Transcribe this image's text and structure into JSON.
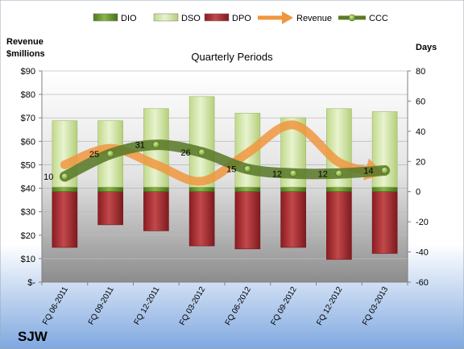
{
  "chart_data": {
    "type": "bar",
    "title": "Quarterly Periods",
    "company": "SJW",
    "y_left_label": [
      "Revenue",
      "$millions"
    ],
    "y_right_label": "Days",
    "categories": [
      "FQ 06-2011",
      "FQ 09-2011",
      "FQ 12-2011",
      "FQ 03-2012",
      "FQ 06-2012",
      "FQ 09-2012",
      "FQ 12-2012",
      "FQ 03-2013"
    ],
    "left_axis": {
      "min": 0,
      "max": 90,
      "step": 10,
      "tick_labels": [
        "$-",
        "$10",
        "$20",
        "$30",
        "$40",
        "$50",
        "$60",
        "$70",
        "$80",
        "$90"
      ]
    },
    "right_axis": {
      "min": -60,
      "max": 80,
      "step": 20,
      "tick_labels": [
        "-60",
        "-40",
        "-20",
        "0",
        "20",
        "40",
        "60",
        "80"
      ]
    },
    "legend": {
      "position": "top",
      "items": [
        {
          "name": "DIO",
          "kind": "bar",
          "color": "#5E8A28"
        },
        {
          "name": "DSO",
          "kind": "bar",
          "color": "#D3E7A8"
        },
        {
          "name": "DPO",
          "kind": "bar",
          "color": "#9B2226"
        },
        {
          "name": "Revenue",
          "kind": "arrow",
          "color": "#F0963E"
        },
        {
          "name": "CCC",
          "kind": "line",
          "color": "#5B7A2A"
        }
      ]
    },
    "series": [
      {
        "name": "DIO",
        "axis": "right",
        "values": [
          3,
          3,
          3,
          3,
          3,
          3,
          3,
          3
        ]
      },
      {
        "name": "DSO",
        "axis": "right",
        "values": [
          44,
          44,
          52,
          60,
          49,
          46,
          52,
          50
        ]
      },
      {
        "name": "DPO",
        "axis": "right",
        "values": [
          -37,
          -22,
          -26,
          -36,
          -38,
          -37,
          -45,
          -41
        ]
      },
      {
        "name": "Revenue",
        "axis": "left",
        "values": [
          50,
          57,
          50,
          43,
          55,
          67,
          51,
          46
        ]
      },
      {
        "name": "CCC",
        "axis": "right",
        "values": [
          10,
          25,
          31,
          26,
          15,
          12,
          12,
          14
        ],
        "data_labels": [
          "10",
          "25",
          "31",
          "26",
          "15",
          "12",
          "12",
          "14"
        ]
      }
    ],
    "grid": true
  }
}
